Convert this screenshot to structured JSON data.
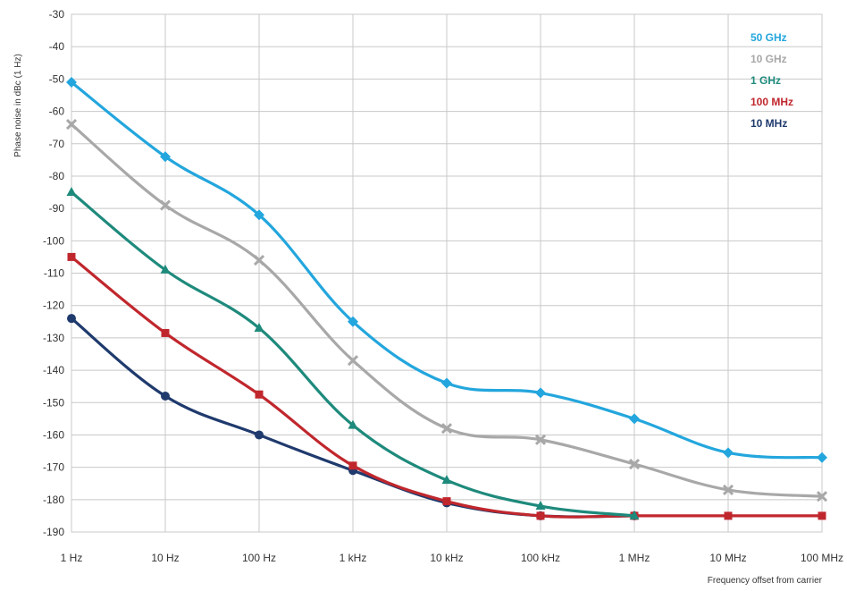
{
  "chart_data": {
    "type": "line",
    "title": "",
    "xlabel": "Frequency offset from carrier",
    "ylabel": "Phase noise in dBc (1 Hz)",
    "categories": [
      "1 Hz",
      "10 Hz",
      "100 Hz",
      "1 kHz",
      "10 kHz",
      "100 kHz",
      "1 MHz",
      "10 MHz",
      "100 MHz"
    ],
    "y_ticks": [
      -30,
      -40,
      -50,
      -60,
      -70,
      -80,
      -90,
      -100,
      -110,
      -120,
      -130,
      -140,
      -150,
      -160,
      -170,
      -180,
      -190
    ],
    "ylim": [
      -190,
      -30
    ],
    "grid": true,
    "legend_position": "top-right",
    "series": [
      {
        "name": "50 GHz",
        "color": "#23a6dd",
        "marker": "diamond",
        "values": [
          -51,
          -74,
          -92,
          -125,
          -144,
          -147,
          -155,
          -165.5,
          -167
        ]
      },
      {
        "name": "10 GHz",
        "color": "#a8a8a8",
        "marker": "x",
        "values": [
          -64,
          -89,
          -106,
          -137,
          -158,
          -161.5,
          -169,
          -177,
          -179
        ]
      },
      {
        "name": "1 GHz",
        "color": "#1e8a7c",
        "marker": "triangle",
        "values": [
          -85,
          -109,
          -127,
          -157,
          -174,
          -182,
          -185,
          null,
          null
        ]
      },
      {
        "name": "100 MHz",
        "color": "#c0272d",
        "marker": "square",
        "values": [
          -105,
          -128.5,
          -147.5,
          -169.5,
          -180.5,
          -185,
          -185,
          -185,
          -185
        ]
      },
      {
        "name": "10 MHz",
        "color": "#1f3a6d",
        "marker": "circle",
        "values": [
          -124,
          -148,
          -160,
          -171,
          -181,
          -185,
          -185,
          null,
          null
        ]
      }
    ]
  }
}
